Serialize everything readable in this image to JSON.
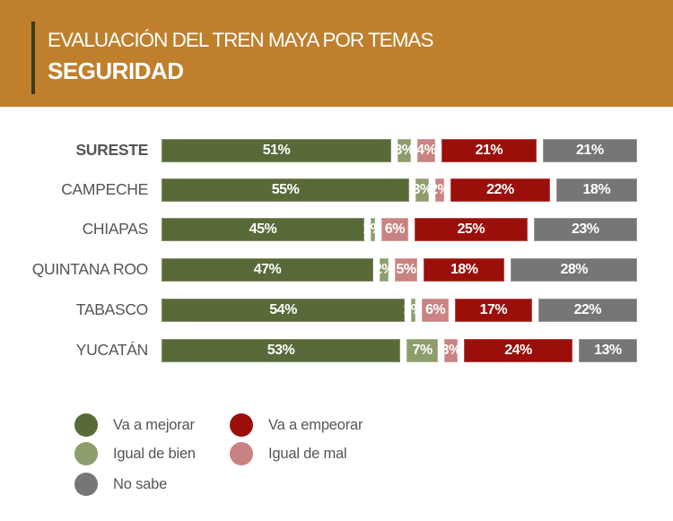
{
  "header": {
    "title": "EVALUACIÓN DEL TREN MAYA POR TEMAS",
    "subtitle": "SEGURIDAD"
  },
  "colors": {
    "header_bg": "#bf7f2c",
    "va_a_mejorar": "#586a38",
    "igual_de_bien": "#8d9e6c",
    "igual_de_mal": "#c98382",
    "va_a_empeorar": "#9b0f0b",
    "no_sabe": "#767676"
  },
  "chart_data": {
    "type": "bar",
    "orientation": "horizontal",
    "stacked": true,
    "title": "EVALUACIÓN DEL TREN MAYA POR TEMAS",
    "subtitle": "SEGURIDAD",
    "xlabel": "",
    "ylabel": "",
    "xlim": [
      0,
      100
    ],
    "grid": false,
    "legend_position": "bottom-left",
    "categories": [
      "SURESTE",
      "CAMPECHE",
      "CHIAPAS",
      "QUINTANA ROO",
      "TABASCO",
      "YUCATÁN"
    ],
    "category_bold": [
      true,
      false,
      false,
      false,
      false,
      false
    ],
    "series": [
      {
        "name": "Va a mejorar",
        "color_key": "va_a_mejorar",
        "values": [
          51,
          55,
          45,
          47,
          54,
          53
        ]
      },
      {
        "name": "Igual de bien",
        "color_key": "igual_de_bien",
        "values": [
          3,
          3,
          1,
          2,
          1,
          7
        ]
      },
      {
        "name": "Igual de mal",
        "color_key": "igual_de_mal",
        "values": [
          4,
          2,
          6,
          5,
          6,
          3
        ]
      },
      {
        "name": "Va a empeorar",
        "color_key": "va_a_empeorar",
        "values": [
          21,
          22,
          25,
          18,
          17,
          24
        ]
      },
      {
        "name": "No sabe",
        "color_key": "no_sabe",
        "values": [
          21,
          18,
          23,
          28,
          22,
          13
        ]
      }
    ],
    "value_suffix": "%"
  },
  "legend": [
    {
      "label": "Va a mejorar",
      "color_key": "va_a_mejorar"
    },
    {
      "label": "Igual de bien",
      "color_key": "igual_de_bien"
    },
    {
      "label": "No sabe",
      "color_key": "no_sabe"
    },
    {
      "label": "Va a empeorar",
      "color_key": "va_a_empeorar"
    },
    {
      "label": "Igual de mal",
      "color_key": "igual_de_mal"
    }
  ]
}
